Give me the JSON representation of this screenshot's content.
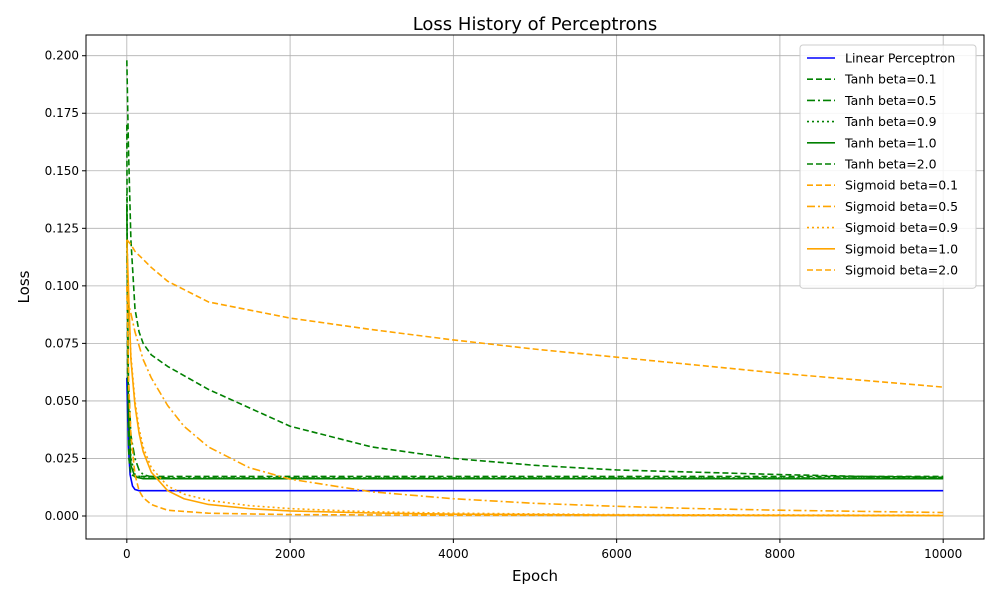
{
  "chart_data": {
    "type": "line",
    "title": "Loss History of Perceptrons",
    "xlabel": "Epoch",
    "ylabel": "Loss",
    "xlim": [
      -500,
      10500
    ],
    "ylim": [
      -0.01,
      0.209
    ],
    "xticks": [
      0,
      2000,
      4000,
      6000,
      8000,
      10000
    ],
    "xtick_labels": [
      "0",
      "2000",
      "4000",
      "6000",
      "8000",
      "10000"
    ],
    "yticks": [
      0.0,
      0.025,
      0.05,
      0.075,
      0.1,
      0.125,
      0.15,
      0.175,
      0.2
    ],
    "ytick_labels": [
      "0.000",
      "0.025",
      "0.050",
      "0.075",
      "0.100",
      "0.125",
      "0.150",
      "0.175",
      "0.200"
    ],
    "grid": true,
    "legend_position": "top-right",
    "series": [
      {
        "name": "Linear Perceptron",
        "color": "#0000ff",
        "dash": "solid",
        "x": [
          0,
          20,
          40,
          70,
          100,
          150,
          300,
          1000,
          10000
        ],
        "y": [
          0.06,
          0.03,
          0.018,
          0.013,
          0.0115,
          0.011,
          0.011,
          0.011,
          0.011
        ]
      },
      {
        "name": "Tanh beta=0.1",
        "color": "#008000",
        "dash": "dashed",
        "x": [
          0,
          20,
          50,
          100,
          150,
          200,
          300,
          500,
          1000,
          2000,
          3000,
          4000,
          5000,
          6000,
          7000,
          8000,
          9000,
          10000
        ],
        "y": [
          0.198,
          0.16,
          0.12,
          0.09,
          0.08,
          0.075,
          0.07,
          0.065,
          0.055,
          0.039,
          0.03,
          0.025,
          0.022,
          0.02,
          0.019,
          0.018,
          0.0172,
          0.0168
        ]
      },
      {
        "name": "Tanh beta=0.5",
        "color": "#008000",
        "dash": "dashdot",
        "x": [
          0,
          20,
          50,
          100,
          150,
          200,
          300,
          500,
          10000
        ],
        "y": [
          0.12,
          0.06,
          0.035,
          0.025,
          0.02,
          0.018,
          0.017,
          0.0165,
          0.0165
        ]
      },
      {
        "name": "Tanh beta=0.9",
        "color": "#008000",
        "dash": "dotted",
        "x": [
          0,
          20,
          50,
          100,
          200,
          10000
        ],
        "y": [
          0.14,
          0.05,
          0.025,
          0.018,
          0.0165,
          0.0165
        ]
      },
      {
        "name": "Tanh beta=1.0",
        "color": "#008000",
        "dash": "solid",
        "x": [
          0,
          20,
          50,
          100,
          200,
          10000
        ],
        "y": [
          0.135,
          0.045,
          0.022,
          0.017,
          0.0162,
          0.0162
        ]
      },
      {
        "name": "Tanh beta=2.0",
        "color": "#008000",
        "dash": "dashed",
        "x": [
          0,
          10,
          25,
          50,
          100,
          10000
        ],
        "y": [
          0.17,
          0.06,
          0.025,
          0.018,
          0.0172,
          0.0172
        ]
      },
      {
        "name": "Sigmoid beta=0.1",
        "color": "#ffa500",
        "dash": "dashed",
        "x": [
          0,
          50,
          100,
          300,
          500,
          1000,
          2000,
          3000,
          4000,
          5000,
          6000,
          7000,
          8000,
          9000,
          10000
        ],
        "y": [
          0.12,
          0.118,
          0.115,
          0.108,
          0.102,
          0.093,
          0.086,
          0.081,
          0.0765,
          0.0725,
          0.069,
          0.0655,
          0.062,
          0.059,
          0.056
        ]
      },
      {
        "name": "Sigmoid beta=0.5",
        "color": "#ffa500",
        "dash": "dashdot",
        "x": [
          0,
          50,
          100,
          200,
          300,
          500,
          700,
          1000,
          1500,
          2000,
          3000,
          4000,
          5000,
          6000,
          7000,
          8000,
          9000,
          10000
        ],
        "y": [
          0.095,
          0.088,
          0.08,
          0.068,
          0.06,
          0.048,
          0.039,
          0.03,
          0.021,
          0.016,
          0.0105,
          0.0075,
          0.0055,
          0.0042,
          0.0032,
          0.0025,
          0.002,
          0.0015
        ]
      },
      {
        "name": "Sigmoid beta=0.9",
        "color": "#ffa500",
        "dash": "dotted",
        "x": [
          0,
          50,
          100,
          150,
          200,
          300,
          500,
          700,
          1000,
          1500,
          2000,
          3000,
          4000,
          6000,
          10000
        ],
        "y": [
          0.11,
          0.07,
          0.05,
          0.038,
          0.03,
          0.021,
          0.013,
          0.0095,
          0.0068,
          0.0045,
          0.0032,
          0.0018,
          0.0012,
          0.0006,
          0.0003
        ]
      },
      {
        "name": "Sigmoid beta=1.0",
        "color": "#ffa500",
        "dash": "solid",
        "x": [
          0,
          50,
          100,
          150,
          200,
          300,
          500,
          700,
          1000,
          1500,
          2000,
          3000,
          4000,
          6000,
          10000
        ],
        "y": [
          0.12,
          0.068,
          0.048,
          0.036,
          0.028,
          0.019,
          0.011,
          0.0075,
          0.005,
          0.0032,
          0.0022,
          0.0013,
          0.0008,
          0.0004,
          0.0002
        ]
      },
      {
        "name": "Sigmoid beta=2.0",
        "color": "#ffa500",
        "dash": "dashed",
        "x": [
          0,
          25,
          50,
          100,
          150,
          200,
          300,
          500,
          1000,
          2000,
          4000,
          10000
        ],
        "y": [
          0.1,
          0.055,
          0.035,
          0.018,
          0.011,
          0.008,
          0.005,
          0.0025,
          0.0012,
          0.0006,
          0.0003,
          0.0001
        ]
      }
    ]
  }
}
